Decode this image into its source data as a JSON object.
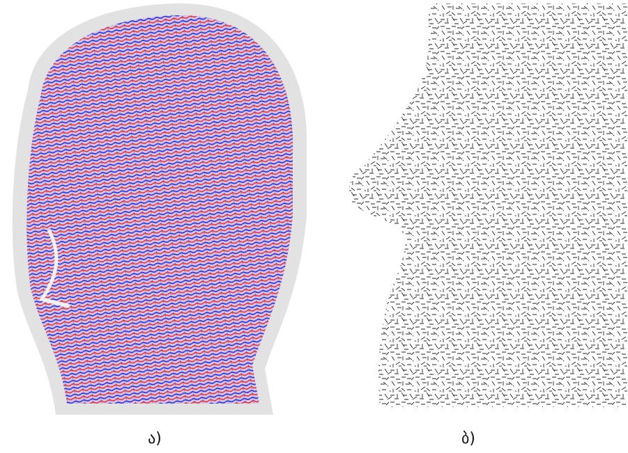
{
  "panels": [
    {
      "label": "ა)"
    },
    {
      "label": "ბ)"
    }
  ]
}
